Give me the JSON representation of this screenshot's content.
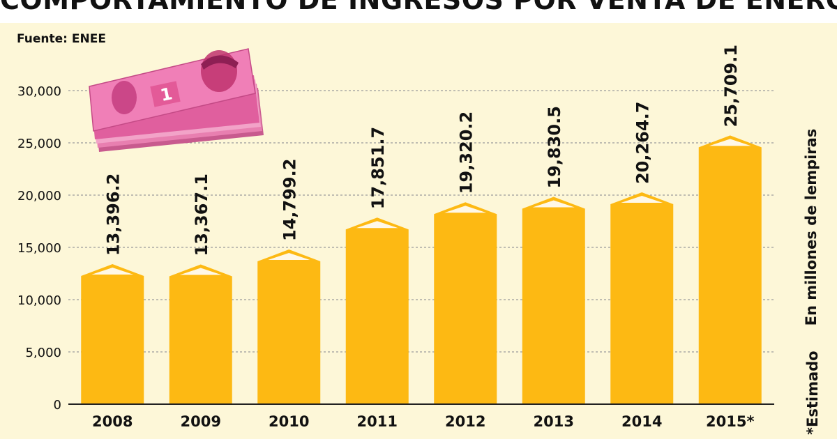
{
  "title": "COMPORTAMIENTO DE INGRESOS POR VENTA DE ENERGÍA",
  "source": "Fuente: ENEE",
  "side_label": "En millones de lempiras",
  "footnote": "*Estimado",
  "illustration": "banknote-stack",
  "colors": {
    "bar": "#fdb913",
    "panel": "#fdf7d8",
    "grid": "#9a9a9a",
    "note": "#e2398f"
  },
  "chart_data": {
    "type": "bar",
    "title": "COMPORTAMIENTO DE INGRESOS POR VENTA DE ENERGÍA",
    "categories": [
      "2008",
      "2009",
      "2010",
      "2011",
      "2012",
      "2013",
      "2014",
      "2015*"
    ],
    "values": [
      13396.2,
      13367.1,
      14799.2,
      17851.7,
      19320.2,
      19830.5,
      20264.7,
      25709.1
    ],
    "value_labels": [
      "13,396.2",
      "13,367.1",
      "14,799.2",
      "17,851.7",
      "19,320.2",
      "19,830.5",
      "20,264.7",
      "25,709.1"
    ],
    "yticks": [
      0,
      5000,
      10000,
      15000,
      20000,
      25000,
      30000
    ],
    "ytick_labels": [
      "0",
      "5,000",
      "10,000",
      "15,000",
      "20,000",
      "25,000",
      "30,000"
    ],
    "ylim": [
      0,
      30000
    ],
    "ylabel": "En millones de lempiras",
    "xlabel": "",
    "grid": true
  }
}
